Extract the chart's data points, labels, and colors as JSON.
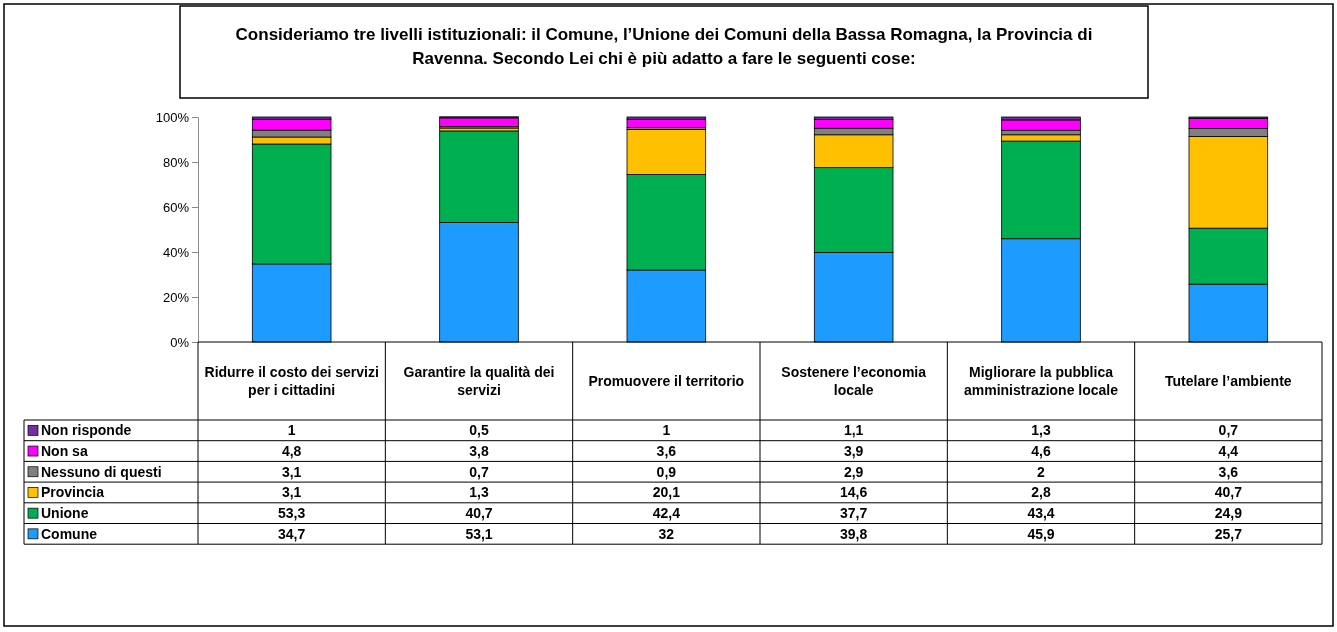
{
  "chart_data": {
    "type": "bar",
    "stacked": true,
    "title": "Consideriamo tre livelli istituzionali: il Comune, l’Unione dei Comuni della Bassa Romagna, la Provincia di Ravenna. Secondo Lei chi è più adatto a fare le seguenti cose:",
    "categories": [
      "Ridurre il costo dei servizi per i cittadini",
      "Garantire la qualità dei servizi",
      "Promuovere il territorio",
      "Sostenere l’economia locale",
      "Migliorare la pubblica amministrazione locale",
      "Tutelare l’ambiente"
    ],
    "ylim": [
      0,
      100
    ],
    "yticks": [
      {
        "value": 0,
        "label": "0%"
      },
      {
        "value": 20,
        "label": "20%"
      },
      {
        "value": 40,
        "label": "40%"
      },
      {
        "value": 60,
        "label": "60%"
      },
      {
        "value": 80,
        "label": "80%"
      },
      {
        "value": 100,
        "label": "100%"
      }
    ],
    "legend": "bottom left",
    "series": [
      {
        "name": "Comune",
        "color": "#1e9bff",
        "values": [
          34.7,
          53.1,
          32,
          39.8,
          45.9,
          25.7
        ],
        "value_labels": [
          "34,7",
          "53,1",
          "32",
          "39,8",
          "45,9",
          "25,7"
        ]
      },
      {
        "name": "Unione",
        "color": "#00b050",
        "values": [
          53.3,
          40.7,
          42.4,
          37.7,
          43.4,
          24.9
        ],
        "value_labels": [
          "53,3",
          "40,7",
          "42,4",
          "37,7",
          "43,4",
          "24,9"
        ]
      },
      {
        "name": "Provincia",
        "color": "#ffc000",
        "values": [
          3.1,
          1.3,
          20.1,
          14.6,
          2.8,
          40.7
        ],
        "value_labels": [
          "3,1",
          "1,3",
          "20,1",
          "14,6",
          "2,8",
          "40,7"
        ]
      },
      {
        "name": "Nessuno di questi",
        "color": "#808080",
        "values": [
          3.1,
          0.7,
          0.9,
          2.9,
          2,
          3.6
        ],
        "value_labels": [
          "3,1",
          "0,7",
          "0,9",
          "2,9",
          "2",
          "3,6"
        ]
      },
      {
        "name": "Non sa",
        "color": "#ff00ff",
        "values": [
          4.8,
          3.8,
          3.6,
          3.9,
          4.6,
          4.4
        ],
        "value_labels": [
          "4,8",
          "3,8",
          "3,6",
          "3,9",
          "4,6",
          "4,4"
        ]
      },
      {
        "name": "Non risponde",
        "color": "#7030a0",
        "values": [
          1,
          0.5,
          1,
          1.1,
          1.3,
          0.7
        ],
        "value_labels": [
          "1",
          "0,5",
          "1",
          "1,1",
          "1,3",
          "0,7"
        ]
      }
    ]
  }
}
